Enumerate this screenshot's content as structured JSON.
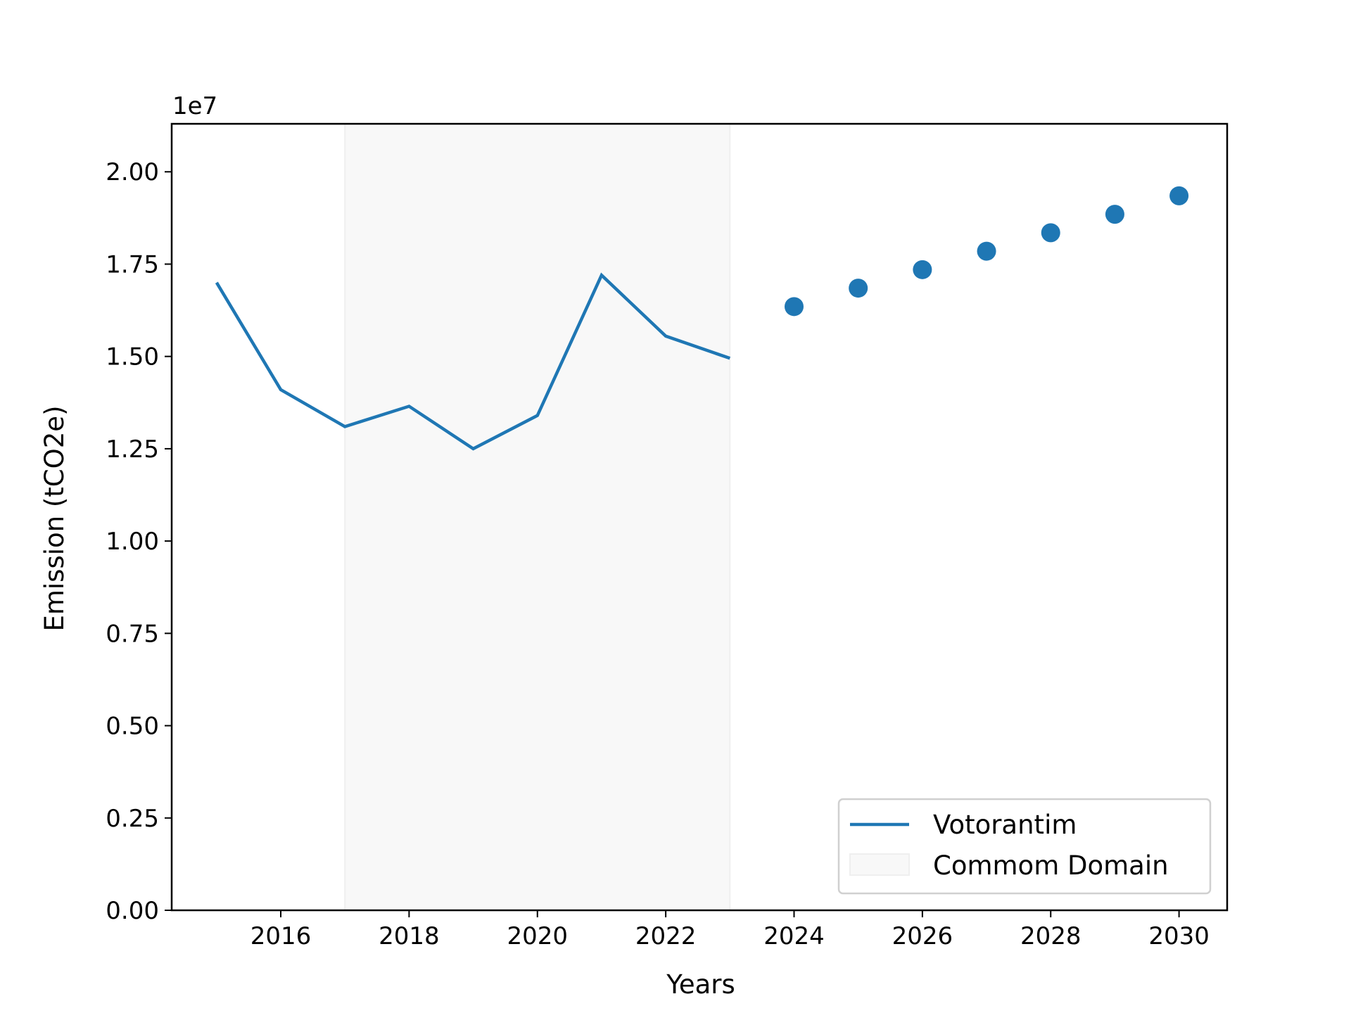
{
  "chart_data": {
    "type": "line",
    "xlabel": "Years",
    "ylabel": "Emission (tCO2e)",
    "y_offset_label": "1e7",
    "xlim": [
      2014.3,
      2030.75
    ],
    "ylim": [
      0,
      2.13
    ],
    "x_ticks": [
      2016,
      2018,
      2020,
      2022,
      2024,
      2026,
      2028,
      2030
    ],
    "x_tick_labels": [
      "2016",
      "2018",
      "2020",
      "2022",
      "2024",
      "2026",
      "2028",
      "2030"
    ],
    "y_ticks": [
      0,
      0.25,
      0.5,
      0.75,
      1.0,
      1.25,
      1.5,
      1.75,
      2.0
    ],
    "y_tick_labels": [
      "0.00",
      "0.25",
      "0.50",
      "0.75",
      "1.00",
      "1.25",
      "1.50",
      "1.75",
      "2.00"
    ],
    "shaded_region": {
      "name": "Commom Domain",
      "x_start": 2017,
      "x_end": 2023,
      "color": "#f0f0f0"
    },
    "series": [
      {
        "name": "Votorantim",
        "kind": "line",
        "color": "#1f77b4",
        "x": [
          2015,
          2016,
          2017,
          2018,
          2019,
          2020,
          2021,
          2022,
          2023
        ],
        "y": [
          1.7,
          1.41,
          1.31,
          1.365,
          1.25,
          1.34,
          1.72,
          1.555,
          1.495
        ]
      },
      {
        "kind": "scatter",
        "color": "#1f77b4",
        "x": [
          2024,
          2025,
          2026,
          2027,
          2028,
          2029,
          2030
        ],
        "y": [
          1.635,
          1.685,
          1.735,
          1.785,
          1.835,
          1.885,
          1.935
        ]
      }
    ],
    "legend": {
      "placement": "lower-right",
      "entries": [
        {
          "label": "Votorantim",
          "type": "line",
          "color": "#1f77b4"
        },
        {
          "label": "Commom Domain",
          "type": "patch",
          "color": "#f0f0f0"
        }
      ]
    },
    "grid": false
  }
}
